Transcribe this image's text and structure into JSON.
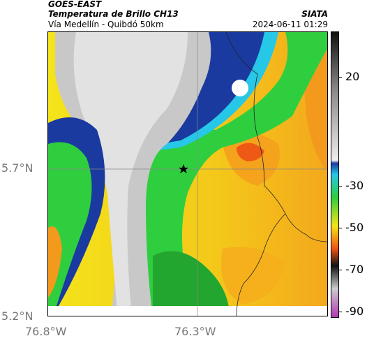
{
  "header": {
    "satellite": "GOES-EAST",
    "product": "Temperatura de Brillo CH13",
    "region": "Vía Medellín - Quibdó 50km",
    "agency": "SIATA",
    "datetime": "2024-06-11 01:29"
  },
  "axes": {
    "lat_labels": [
      "5.7°N",
      "5.2°N"
    ],
    "lon_labels": [
      "76.8°W",
      "76.3°W"
    ]
  },
  "colorbar": {
    "labels": [
      "20",
      "-30",
      "-50",
      "-70",
      "-90"
    ]
  },
  "colors": {
    "cold_gray": "#c8c8c8",
    "blue": "#1a3aa0",
    "cyan": "#27c7e8",
    "green": "#2fce3f",
    "yellow": "#f4e41a",
    "orange": "#f39a1c",
    "red": "#f05414"
  },
  "marker": {
    "icon": "star-icon"
  }
}
